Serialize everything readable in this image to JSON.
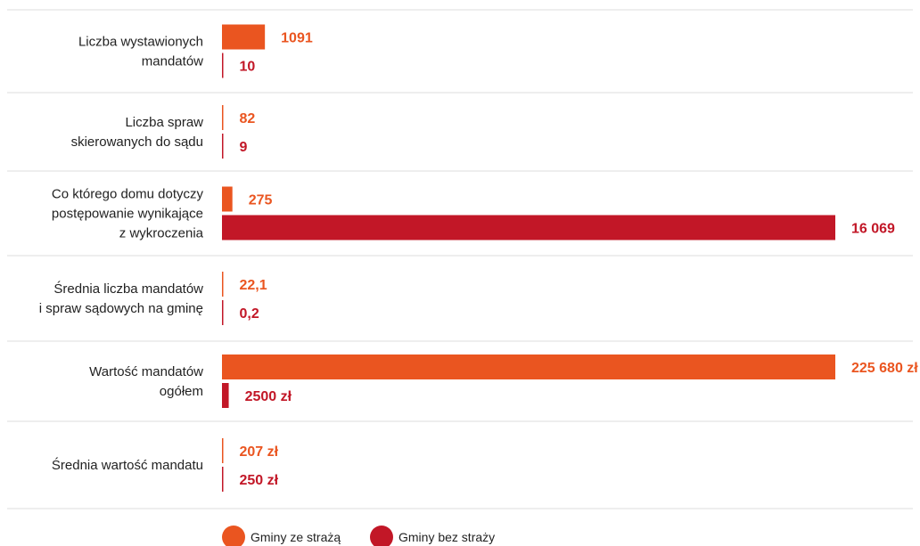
{
  "colors": {
    "with_guard": "#ea5520",
    "without_guard": "#c21727",
    "separator": "#dddddd"
  },
  "legend": [
    "Gminy ze strażą",
    "Gminy bez straży"
  ],
  "chart_data": {
    "type": "bar",
    "orientation": "horizontal",
    "grouping": "per-row normalized",
    "legend_position": "bottom",
    "series_names": [
      "Gminy ze strażą",
      "Gminy bez straży"
    ],
    "rows": [
      {
        "label": [
          "Liczba wystawionych",
          "mandatów"
        ],
        "values": [
          1091,
          10
        ],
        "labels": [
          "1091",
          "10"
        ],
        "fill": [
          0.07,
          0.0
        ]
      },
      {
        "label": [
          "Liczba spraw",
          "skierowanych do sądu"
        ],
        "values": [
          82,
          9
        ],
        "labels": [
          "82",
          "9"
        ],
        "fill": [
          0.0,
          0.0
        ]
      },
      {
        "label": [
          "Co którego domu dotyczy",
          "postępowanie wynikające",
          "z wykroczenia"
        ],
        "values": [
          275,
          16069
        ],
        "labels": [
          "275",
          "16 069"
        ],
        "fill": [
          0.017,
          1.0
        ]
      },
      {
        "label": [
          "Średnia liczba mandatów",
          "i spraw sądowych na gminę"
        ],
        "values": [
          22.1,
          0.2
        ],
        "labels": [
          "22,1",
          "0,2"
        ],
        "fill": [
          0.0,
          0.0
        ]
      },
      {
        "label": [
          "Wartość mandatów",
          "ogółem"
        ],
        "values": [
          225680,
          2500
        ],
        "labels": [
          "225 680 zł",
          "2500 zł"
        ],
        "fill": [
          1.0,
          0.011
        ]
      },
      {
        "label": [
          "Średnia wartość mandatu"
        ],
        "values": [
          207,
          250
        ],
        "labels": [
          "207 zł",
          "250 zł"
        ],
        "fill": [
          0.0,
          0.0
        ]
      }
    ]
  }
}
